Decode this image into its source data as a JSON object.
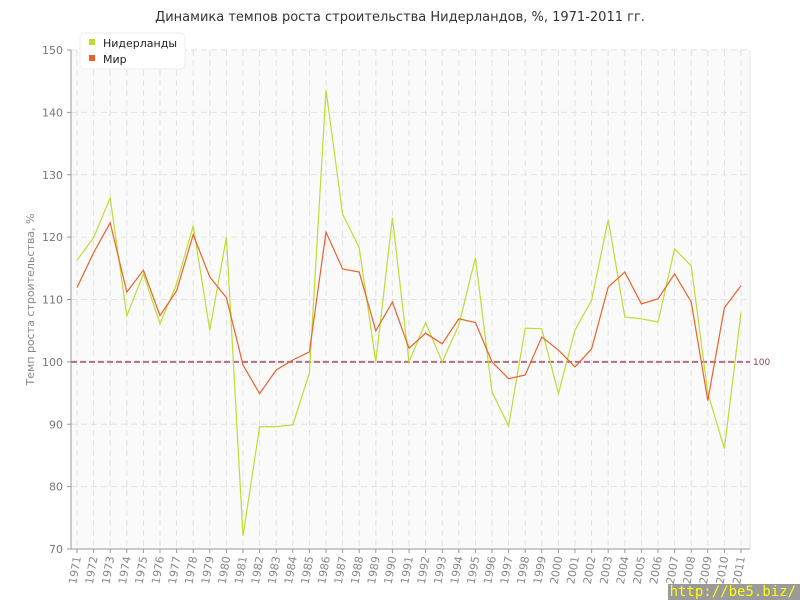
{
  "chart_data": {
    "type": "line",
    "title": "Динамика темпов роста строительства Нидерландов, %, 1971-2011 гг.",
    "xlabel": "",
    "ylabel": "Темп роста строительства, %",
    "ylim": [
      70,
      150
    ],
    "yticks": [
      70,
      80,
      90,
      100,
      110,
      120,
      130,
      140,
      150
    ],
    "grid": true,
    "legend": "top-left",
    "reference_line": {
      "value": 100,
      "label": "100",
      "color": "#b07080"
    },
    "x": [
      1971,
      1972,
      1973,
      1974,
      1975,
      1976,
      1977,
      1978,
      1979,
      1980,
      1981,
      1982,
      1983,
      1984,
      1985,
      1986,
      1987,
      1988,
      1989,
      1990,
      1991,
      1992,
      1993,
      1994,
      1995,
      1996,
      1997,
      1998,
      1999,
      2000,
      2001,
      2002,
      2003,
      2004,
      2005,
      2006,
      2007,
      2008,
      2009,
      2010,
      2011
    ],
    "series": [
      {
        "name": "Нидерланды",
        "color": "#bedd34",
        "values": [
          116.3,
          119.9,
          126.3,
          107.4,
          114.1,
          106.1,
          112.5,
          121.8,
          105.1,
          120.0,
          72.1,
          89.6,
          89.6,
          89.9,
          98.2,
          143.6,
          123.7,
          118.3,
          100.0,
          123.1,
          100.0,
          106.3,
          100.0,
          105.9,
          116.7,
          95.2,
          89.7,
          105.4,
          105.3,
          94.9,
          105.1,
          109.9,
          122.8,
          107.2,
          106.9,
          106.4,
          118.1,
          115.4,
          95.0,
          86.1,
          107.9
        ]
      },
      {
        "name": "Мир",
        "color": "#e8632c",
        "values": [
          111.9,
          117.5,
          122.3,
          111.2,
          114.7,
          107.4,
          111.4,
          120.4,
          113.6,
          110.3,
          99.5,
          94.9,
          98.7,
          100.3,
          101.6,
          120.8,
          114.9,
          114.4,
          105.0,
          109.6,
          102.2,
          104.6,
          102.9,
          106.9,
          106.3,
          100.0,
          97.3,
          97.9,
          104.0,
          101.9,
          99.2,
          102.1,
          112.0,
          114.4,
          109.3,
          110.1,
          114.1,
          109.6,
          93.8,
          108.7,
          112.2
        ]
      }
    ]
  },
  "watermark": "http://be5.biz/"
}
